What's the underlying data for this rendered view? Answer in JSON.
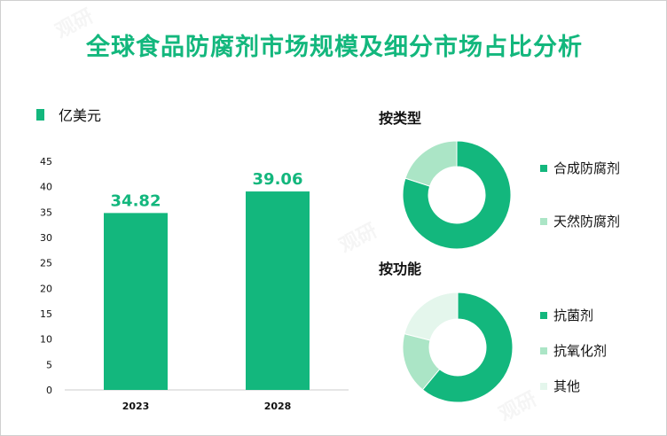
{
  "title": "全球食品防腐剂市场规模及细分市场占比分析",
  "colors": {
    "primary": "#13b77d",
    "light": "#abe5c6",
    "lighter": "#e4f6ec",
    "text": "#111111",
    "axis": "#cccccc"
  },
  "chart_data": [
    {
      "type": "bar",
      "unit_label": "亿美元",
      "categories": [
        "2023",
        "2028"
      ],
      "values": [
        34.82,
        39.06
      ],
      "value_labels": [
        "34.82",
        "39.06"
      ],
      "ylim": [
        0,
        45
      ],
      "yticks": [
        "0",
        "5",
        "10",
        "15",
        "20",
        "25",
        "30",
        "35",
        "40",
        "45"
      ],
      "color": "#13b77d"
    },
    {
      "type": "pie",
      "title": "按类型",
      "labels": [
        "合成防腐剂",
        "天然防腐剂"
      ],
      "values": [
        80,
        20
      ],
      "colors": [
        "#13b77d",
        "#abe5c6"
      ]
    },
    {
      "type": "pie",
      "title": "按功能",
      "labels": [
        "抗菌剂",
        "抗氧化剂",
        "其他"
      ],
      "values": [
        61,
        18,
        21
      ],
      "colors": [
        "#13b77d",
        "#abe5c6",
        "#e4f6ec"
      ]
    }
  ]
}
